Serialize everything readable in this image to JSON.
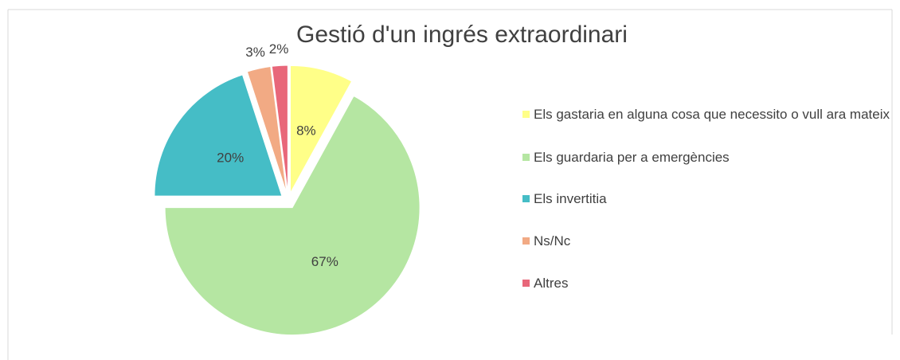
{
  "chart_data": {
    "type": "pie",
    "title": "Gestió d'un ingrés extraordinari",
    "categories": [
      "Els gastaria en alguna cosa que necessito o vull ara mateix",
      "Els guardaria per a emergències",
      "Els invertitia",
      "Ns/Nc",
      "Altres"
    ],
    "values": [
      8,
      67,
      20,
      3,
      2
    ],
    "value_labels": [
      "8%",
      "67%",
      "20%",
      "3%",
      "2%"
    ],
    "colors": [
      "#ffff88",
      "#b5e6a2",
      "#45bdc6",
      "#f2aa84",
      "#e8677a"
    ],
    "legend": "right"
  }
}
